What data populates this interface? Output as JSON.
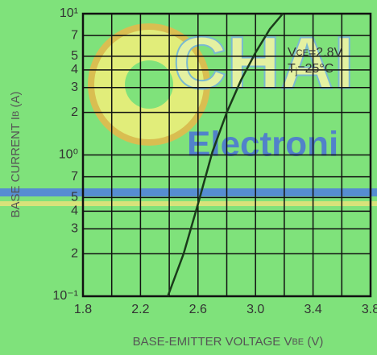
{
  "watermark": {
    "logo": "CHAI",
    "sub": "Electroni"
  },
  "chart_data": {
    "type": "line",
    "y_scale": "log",
    "grid": true,
    "x_label": [
      "BASE-EMITTER VOLTAGE   V",
      "BE",
      " (V)"
    ],
    "y_label": [
      "BASE CURRENT   I",
      "B",
      " (A)"
    ],
    "annotations": [
      {
        "parts": [
          "V",
          "CE",
          "=2.8V"
        ]
      },
      {
        "parts": [
          "T",
          "j",
          "=25°C"
        ]
      }
    ],
    "xlim": [
      1.8,
      3.8
    ],
    "xticks": [
      1.8,
      {
        "value": 2.0,
        "label": ""
      },
      2.2,
      {
        "value": 2.4,
        "label": ""
      },
      2.6,
      {
        "value": 2.8,
        "label": ""
      },
      {
        "value": 3.0,
        "label": "3.0"
      },
      {
        "value": 3.2,
        "label": ""
      },
      3.4,
      {
        "value": 3.6,
        "label": ""
      },
      3.8
    ],
    "ylim": [
      0.1,
      10
    ],
    "yticks": [
      {
        "value": 0.1,
        "label": "10⁻¹"
      },
      {
        "value": 0.2,
        "label": "2"
      },
      {
        "value": 0.3,
        "label": "3"
      },
      {
        "value": 0.4,
        "label": "4"
      },
      {
        "value": 0.5,
        "label": "5"
      },
      {
        "value": 0.7,
        "label": "7"
      },
      {
        "value": 1,
        "label": "10⁰"
      },
      2,
      3,
      4,
      5,
      7,
      {
        "value": 10,
        "label": "10¹"
      }
    ],
    "series": [
      {
        "color": "#1a3a1a",
        "x": [
          2.39,
          2.5,
          2.6,
          2.7,
          2.8,
          2.9,
          3.0,
          3.1,
          3.19
        ],
        "values": [
          0.1,
          0.2,
          0.45,
          1.05,
          2.0,
          3.4,
          5.3,
          7.8,
          10
        ]
      }
    ]
  }
}
